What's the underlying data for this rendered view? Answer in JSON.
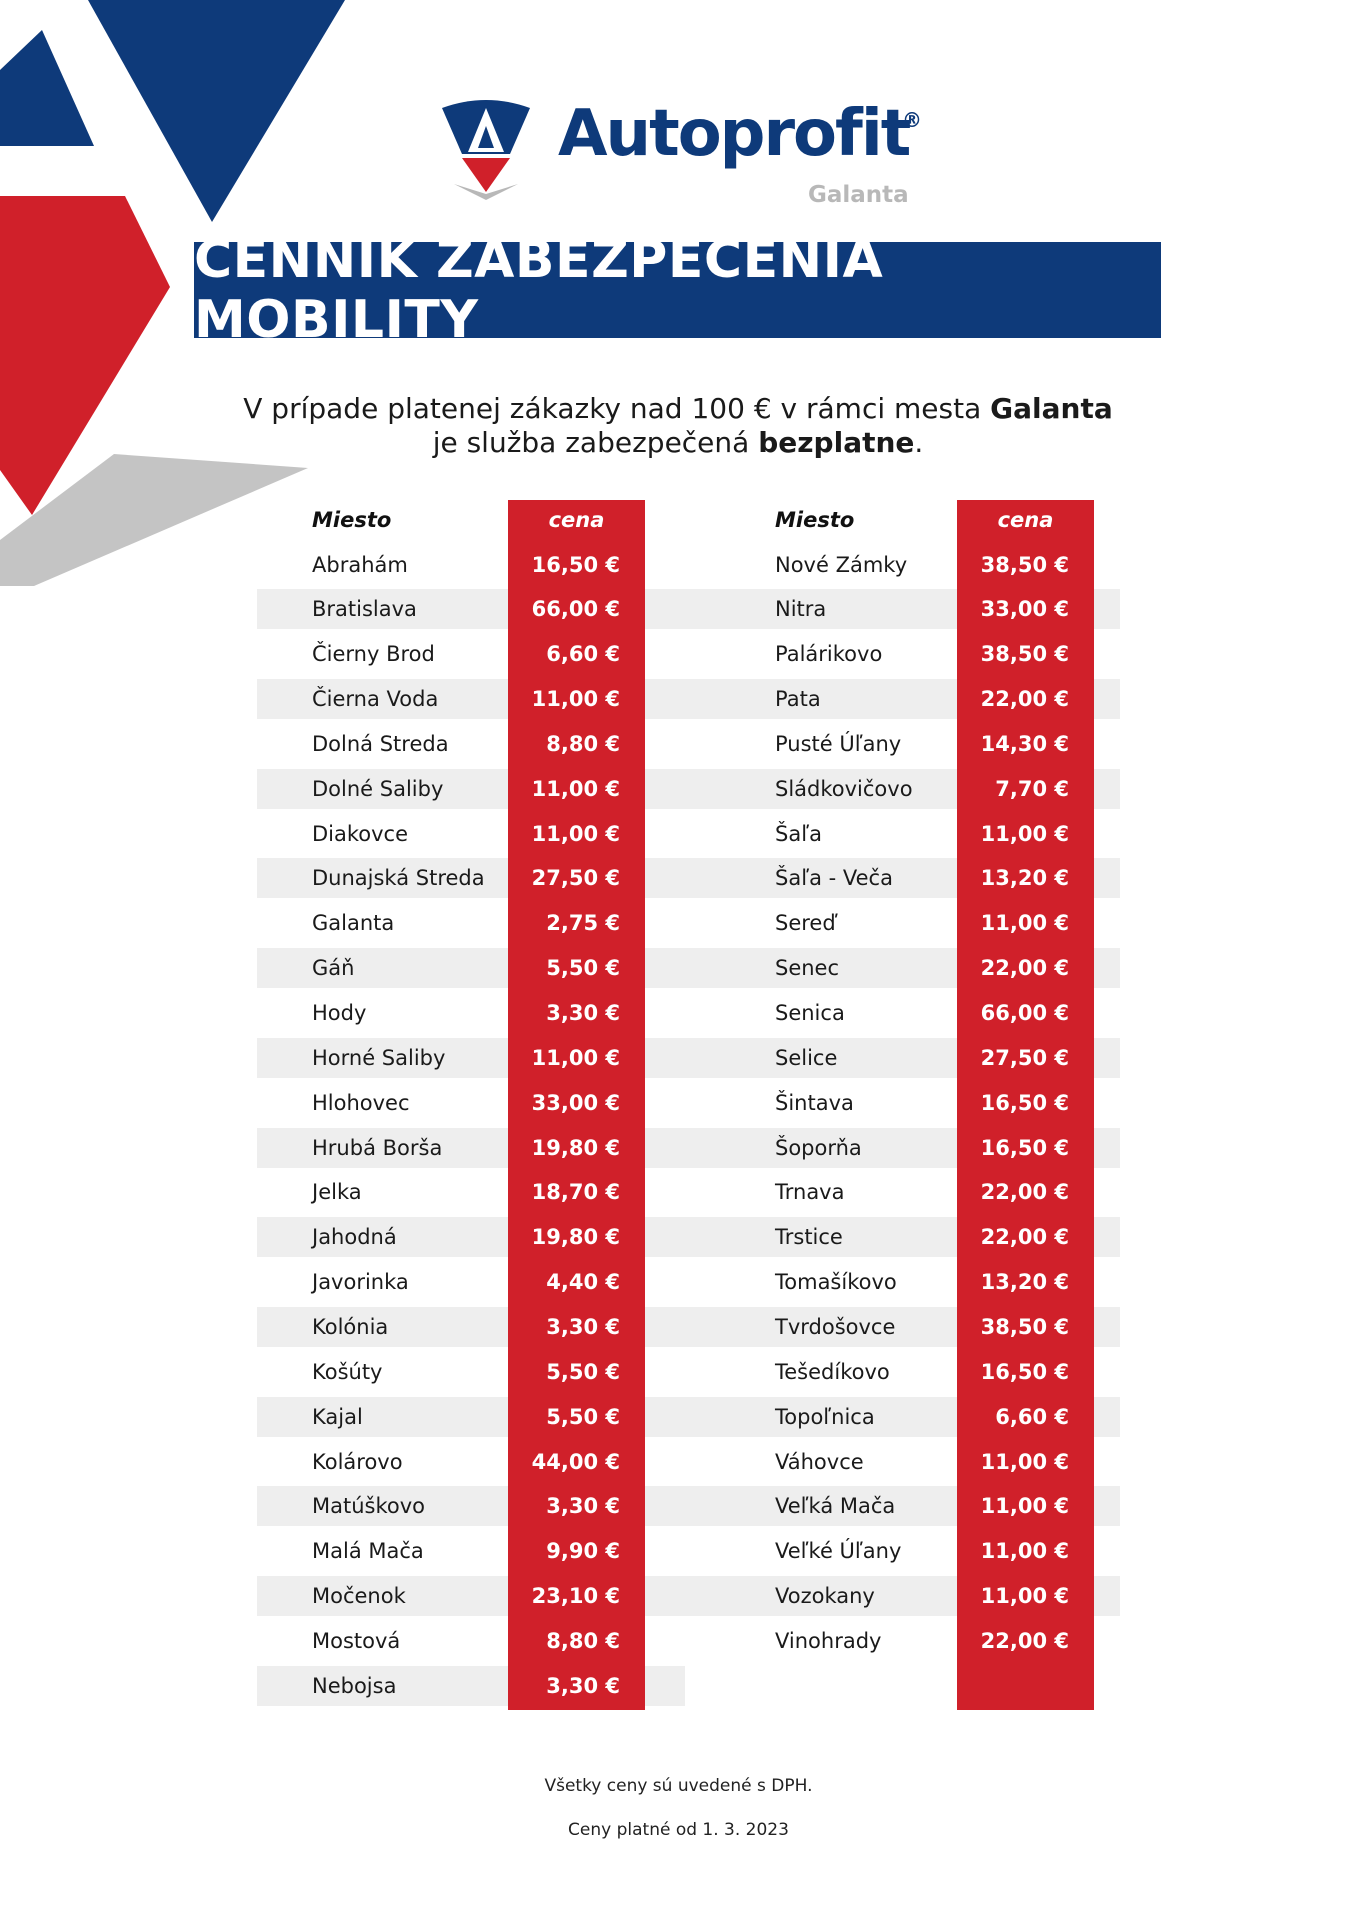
{
  "colors": {
    "navy": "#0e3a7a",
    "red": "#d0202a",
    "stripe": "#eeeeee",
    "gray": "#c4c4c4"
  },
  "brand": {
    "name": "Autoprofit",
    "registered": "®",
    "branch": "Galanta",
    "logo_icon": "autoprofit-a-shield-icon"
  },
  "banner_title": "CENNÍK ZABEZPEČENIA MOBILITY",
  "intro": {
    "line1_a": "V prípade platenej zákazky nad 100 € v rámci mesta ",
    "line1_b": "Galanta",
    "line2_a": "je služba zabezpečená ",
    "line2_b": "bezplatne",
    "line2_c": "."
  },
  "headers": {
    "place": "Miesto",
    "price": "cena"
  },
  "left": [
    {
      "place": "Abrahám",
      "price": "16,50 €"
    },
    {
      "place": "Bratislava",
      "price": "66,00 €"
    },
    {
      "place": "Čierny Brod",
      "price": "6,60 €"
    },
    {
      "place": "Čierna Voda",
      "price": "11,00 €"
    },
    {
      "place": "Dolná Streda",
      "price": "8,80 €"
    },
    {
      "place": "Dolné Saliby",
      "price": "11,00 €"
    },
    {
      "place": "Diakovce",
      "price": "11,00 €"
    },
    {
      "place": "Dunajská Streda",
      "price": "27,50 €"
    },
    {
      "place": "Galanta",
      "price": "2,75 €"
    },
    {
      "place": "Gáň",
      "price": "5,50 €"
    },
    {
      "place": "Hody",
      "price": "3,30 €"
    },
    {
      "place": "Horné Saliby",
      "price": "11,00 €"
    },
    {
      "place": "Hlohovec",
      "price": "33,00 €"
    },
    {
      "place": "Hrubá Borša",
      "price": "19,80 €"
    },
    {
      "place": "Jelka",
      "price": "18,70 €"
    },
    {
      "place": "Jahodná",
      "price": "19,80 €"
    },
    {
      "place": "Javorinka",
      "price": "4,40 €"
    },
    {
      "place": "Kolónia",
      "price": "3,30 €"
    },
    {
      "place": "Košúty",
      "price": "5,50 €"
    },
    {
      "place": "Kajal",
      "price": "5,50 €"
    },
    {
      "place": "Kolárovo",
      "price": "44,00 €"
    },
    {
      "place": "Matúškovo",
      "price": "3,30 €"
    },
    {
      "place": "Malá Mača",
      "price": "9,90 €"
    },
    {
      "place": "Močenok",
      "price": "23,10 €"
    },
    {
      "place": "Mostová",
      "price": "8,80 €"
    },
    {
      "place": "Nebojsa",
      "price": "3,30 €"
    }
  ],
  "right": [
    {
      "place": "Nové Zámky",
      "price": "38,50 €"
    },
    {
      "place": "Nitra",
      "price": "33,00 €"
    },
    {
      "place": "Palárikovo",
      "price": "38,50 €"
    },
    {
      "place": "Pata",
      "price": "22,00 €"
    },
    {
      "place": "Pusté Úľany",
      "price": "14,30 €"
    },
    {
      "place": "Sládkovičovo",
      "price": "7,70 €"
    },
    {
      "place": "Šaľa",
      "price": "11,00 €"
    },
    {
      "place": "Šaľa - Veča",
      "price": "13,20 €"
    },
    {
      "place": "Sereď",
      "price": "11,00 €"
    },
    {
      "place": "Senec",
      "price": "22,00 €"
    },
    {
      "place": "Senica",
      "price": "66,00 €"
    },
    {
      "place": "Selice",
      "price": "27,50 €"
    },
    {
      "place": "Šintava",
      "price": "16,50 €"
    },
    {
      "place": "Šoporňa",
      "price": "16,50 €"
    },
    {
      "place": "Trnava",
      "price": "22,00 €"
    },
    {
      "place": "Trstice",
      "price": "22,00 €"
    },
    {
      "place": "Tomašíkovo",
      "price": "13,20 €"
    },
    {
      "place": "Tvrdošovce",
      "price": "38,50 €"
    },
    {
      "place": "Tešedíkovo",
      "price": "16,50 €"
    },
    {
      "place": "Topoľnica",
      "price": "6,60 €"
    },
    {
      "place": "Váhovce",
      "price": "11,00 €"
    },
    {
      "place": "Veľká Mača",
      "price": "11,00 €"
    },
    {
      "place": "Veľké Úľany",
      "price": "11,00 €"
    },
    {
      "place": "Vozokany",
      "price": "11,00 €"
    },
    {
      "place": "Vinohrady",
      "price": "22,00 €"
    }
  ],
  "footer": {
    "vat_note": "Všetky ceny sú uvedené s DPH.",
    "valid_note": "Ceny platné od 1. 3. 2023"
  }
}
